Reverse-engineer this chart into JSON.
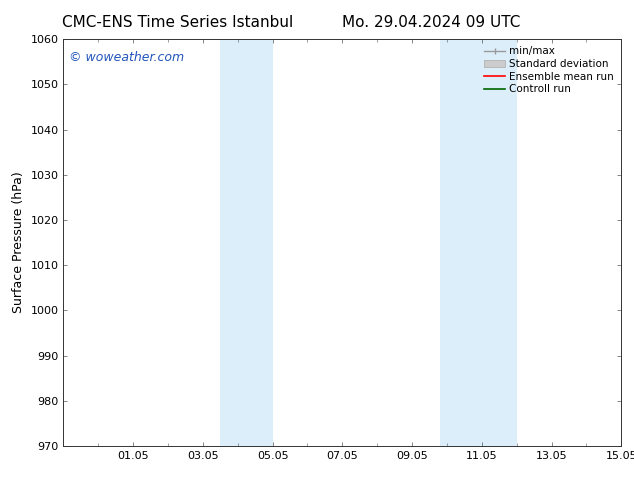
{
  "title_left": "CMC-ENS Time Series Istanbul",
  "title_right": "Mo. 29.04.2024 09 UTC",
  "ylabel": "Surface Pressure (hPa)",
  "ylim": [
    970,
    1060
  ],
  "yticks": [
    970,
    980,
    990,
    1000,
    1010,
    1020,
    1030,
    1040,
    1050,
    1060
  ],
  "xtick_labels": [
    "01.05",
    "03.05",
    "05.05",
    "07.05",
    "09.05",
    "11.05",
    "13.05",
    "15.05"
  ],
  "xtick_positions": [
    2,
    4,
    6,
    8,
    10,
    12,
    14,
    16
  ],
  "xlim": [
    0,
    16
  ],
  "shaded_bands": [
    {
      "x_start": 4.5,
      "x_end": 6.0
    },
    {
      "x_start": 10.8,
      "x_end": 13.0
    }
  ],
  "shaded_color": "#dceef9",
  "background_color": "#ffffff",
  "watermark_text": "© woweather.com",
  "watermark_color": "#2255bb",
  "title_fontsize": 11,
  "ylabel_fontsize": 9,
  "tick_fontsize": 8,
  "watermark_fontsize": 9,
  "legend_fontsize": 7.5,
  "legend_items": [
    {
      "label": "min/max",
      "color": "#999999"
    },
    {
      "label": "Standard deviation",
      "color": "#bbbbbb"
    },
    {
      "label": "Ensemble mean run",
      "color": "#ff0000"
    },
    {
      "label": "Controll run",
      "color": "#006600"
    }
  ]
}
